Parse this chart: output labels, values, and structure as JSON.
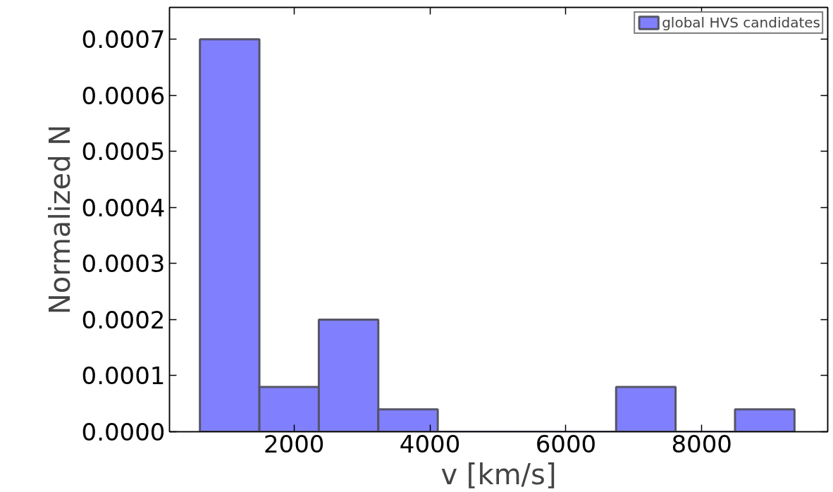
{
  "chart_data": {
    "type": "histogram",
    "xlabel": "v [km/s]",
    "ylabel": "Normalized N",
    "bins": [
      615,
      1490,
      2365,
      3240,
      4115,
      4990,
      5865,
      6740,
      7615,
      8490,
      9365
    ],
    "series": [
      {
        "name": "global HVS candidates",
        "color": "#8080ff",
        "values": [
          0.0007,
          8e-05,
          0.0002,
          4e-05,
          0,
          0,
          0,
          8e-05,
          0,
          4e-05
        ]
      }
    ],
    "xlim": [
      167,
      9854
    ],
    "ylim": [
      0,
      0.000757
    ],
    "xticks": [
      2000,
      4000,
      6000,
      8000
    ],
    "yticks": [
      {
        "value": 0,
        "label": "0.0000"
      },
      {
        "value": 0.0001,
        "label": "0.0001"
      },
      {
        "value": 0.0002,
        "label": "0.0002"
      },
      {
        "value": 0.0003,
        "label": "0.0003"
      },
      {
        "value": 0.0004,
        "label": "0.0004"
      },
      {
        "value": 0.0005,
        "label": "0.0005"
      },
      {
        "value": 0.0006,
        "label": "0.0006"
      },
      {
        "value": 0.0007,
        "label": "0.0007"
      }
    ],
    "grid": false,
    "legend": "top right"
  }
}
